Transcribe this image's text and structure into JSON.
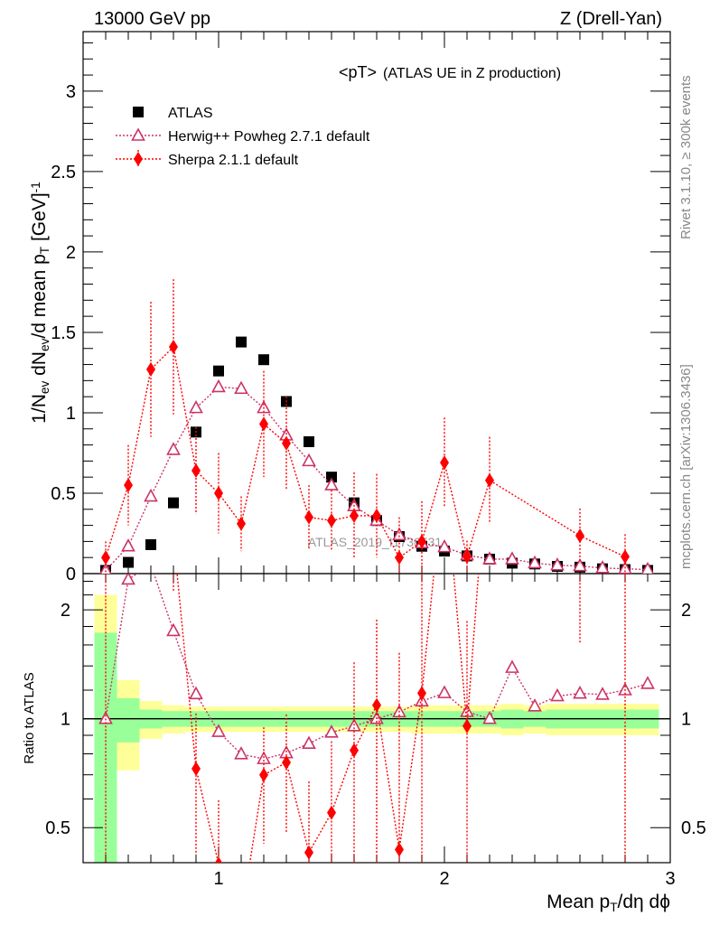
{
  "header": {
    "left": "13000 GeV pp",
    "right": "Z (Drell-Yan)"
  },
  "side_labels": {
    "rivet": "Rivet 3.1.10, ≥ 300k events",
    "mcplots": "mcplots.cern.ch [arXiv:1306.3436]"
  },
  "watermark": "ATLAS_2019_I1736531",
  "chart_data": {
    "type": "scatter",
    "title": "<pT>",
    "subtitle": "(ATLAS UE in Z production)",
    "ylabel_parts": [
      {
        "t": "1/N",
        "s": ""
      },
      {
        "t": "ev",
        "s": "sub"
      },
      {
        "t": " dN",
        "s": ""
      },
      {
        "t": "ev",
        "s": "sub"
      },
      {
        "t": "/d mean p",
        "s": ""
      },
      {
        "t": "T",
        "s": "sub"
      },
      {
        "t": " [GeV]",
        "s": ""
      },
      {
        "t": "-1",
        "s": "sup"
      }
    ],
    "xlabel_parts": [
      {
        "t": "Mean p",
        "s": ""
      },
      {
        "t": "T",
        "s": "sub"
      },
      {
        "t": "/dη dϕ",
        "s": ""
      }
    ],
    "ratio_ylabel": "Ratio to ATLAS",
    "xlim": [
      0.4,
      3.0
    ],
    "ylim": [
      0,
      3.37
    ],
    "ratio_ylim": [
      0.4,
      2.52
    ],
    "ratio_scale": "log",
    "x_ticks": [
      "1",
      "2",
      "3"
    ],
    "y_ticks": [
      "0",
      "0.5",
      "1",
      "1.5",
      "2",
      "2.5",
      "3"
    ],
    "ratio_ticks": [
      "0.5",
      "1",
      "2"
    ],
    "legend_placement": "top-left",
    "x": [
      0.5,
      0.6,
      0.7,
      0.8,
      0.9,
      1.0,
      1.1,
      1.2,
      1.3,
      1.4,
      1.5,
      1.6,
      1.7,
      1.8,
      1.9,
      2.0,
      2.1,
      2.2,
      2.3,
      2.4,
      2.5,
      2.6,
      2.7,
      2.8,
      2.9
    ],
    "series": [
      {
        "name": "ATLAS",
        "color": "#000000",
        "marker": "square",
        "values": [
          0.02,
          0.07,
          0.18,
          0.44,
          0.88,
          1.26,
          1.44,
          1.33,
          1.07,
          0.82,
          0.6,
          0.44,
          0.33,
          0.23,
          0.17,
          0.14,
          0.11,
          0.09,
          0.065,
          0.06,
          0.045,
          0.04,
          0.03,
          0.025,
          0.02
        ],
        "stat_rel": [
          0.73,
          0.14,
          0.06,
          0.05,
          0.05,
          0.05,
          0.05,
          0.05,
          0.05,
          0.05,
          0.05,
          0.05,
          0.05,
          0.05,
          0.05,
          0.05,
          0.05,
          0.05,
          0.06,
          0.05,
          0.06,
          0.06,
          0.06,
          0.06,
          0.06
        ],
        "total_rel": [
          1.2,
          0.28,
          0.12,
          0.09,
          0.08,
          0.08,
          0.08,
          0.08,
          0.08,
          0.08,
          0.08,
          0.08,
          0.08,
          0.08,
          0.09,
          0.09,
          0.09,
          0.09,
          0.1,
          0.09,
          0.1,
          0.1,
          0.1,
          0.1,
          0.1
        ]
      },
      {
        "name": "Herwig++ Powheg 2.7.1 default",
        "color": "#cc3366",
        "marker": "open-triangle",
        "values": [
          0.02,
          0.17,
          0.48,
          0.77,
          1.03,
          1.16,
          1.15,
          1.03,
          0.86,
          0.7,
          0.55,
          0.42,
          0.33,
          0.24,
          0.19,
          0.165,
          0.115,
          0.09,
          0.09,
          0.065,
          0.052,
          0.047,
          0.035,
          0.03,
          0.025
        ]
      },
      {
        "name": "Sherpa 2.1.1 default",
        "color": "#ff0000",
        "marker": "diamond",
        "x": [
          0.5,
          0.6,
          0.7,
          0.8,
          0.9,
          1.0,
          1.1,
          1.2,
          1.3,
          1.4,
          1.5,
          1.6,
          1.7,
          1.8,
          1.9,
          2.0,
          2.1,
          2.2,
          2.6,
          2.8
        ],
        "values": [
          0.1,
          0.55,
          1.27,
          1.41,
          0.64,
          0.5,
          0.31,
          0.93,
          0.81,
          0.35,
          0.33,
          0.36,
          0.36,
          0.1,
          0.2,
          0.69,
          0.105,
          0.58,
          0.235,
          0.105
        ],
        "errors": [
          0.1,
          0.25,
          0.42,
          0.42,
          0.27,
          0.25,
          0.17,
          0.33,
          0.29,
          0.2,
          0.19,
          0.27,
          0.26,
          0.25,
          0.25,
          0.28,
          0.1,
          0.27,
          0.17,
          0.14
        ]
      }
    ]
  }
}
